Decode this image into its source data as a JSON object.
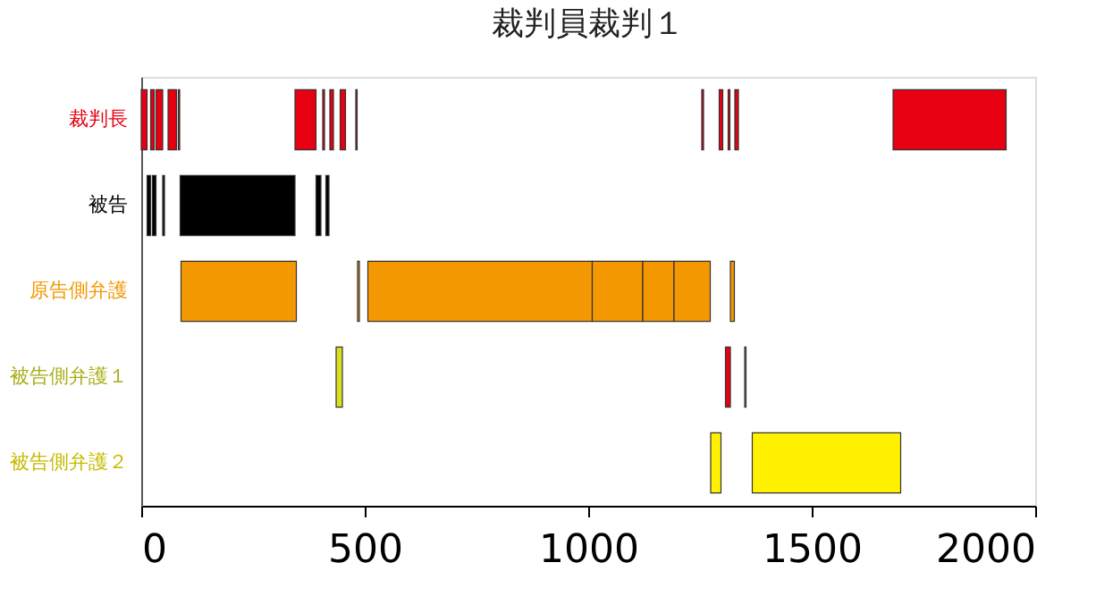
{
  "chart_data": {
    "type": "bar",
    "orientation": "horizontal",
    "title": "裁判員裁判１",
    "categories": [
      "裁判長",
      "被告",
      "原告側弁護",
      "被告側弁護１",
      "被告側弁護２"
    ],
    "series": [
      {
        "colors": [
          "#e60012",
          "#000000",
          "#f39800",
          "#d9e021",
          "#fff100"
        ],
        "base": [
          0,
          13,
          89,
          436,
          1274
        ],
        "values": [
          13,
          8,
          258,
          14,
          23
        ]
      },
      {
        "colors": [
          "#e60012",
          "#000000",
          "#f39800",
          "#e60012",
          "#fff100"
        ],
        "base": [
          21,
          25,
          484,
          1307,
          1367
        ],
        "values": [
          8,
          8,
          4,
          11,
          332
        ]
      },
      {
        "colors": [
          "#e60012",
          "#000000",
          "#f39800",
          "#999999",
          "#fff100"
        ],
        "base": [
          33,
          48,
          507,
          1350,
          null
        ],
        "values": [
          15,
          4,
          502,
          3,
          null
        ]
      },
      {
        "colors": [
          "#e60012",
          "#000000",
          "#f39800",
          "#d9e021",
          "#fff100"
        ],
        "base": [
          60,
          87,
          1009,
          null,
          null
        ],
        "values": [
          19,
          257,
          113,
          null,
          null
        ]
      },
      {
        "colors": [
          "#e60012",
          "#000000",
          "#f39800",
          "#d9e021",
          "#fff100"
        ],
        "base": [
          83,
          391,
          1122,
          null,
          null
        ],
        "values": [
          3,
          11,
          70,
          null,
          null
        ]
      },
      {
        "colors": [
          "#e60012",
          "#000000",
          "#f39800",
          "#d9e021",
          "#fff100"
        ],
        "base": [
          344,
          413,
          1192,
          null,
          null
        ],
        "values": [
          47,
          7,
          81,
          null,
          null
        ]
      },
      {
        "colors": [
          "#e60012",
          "#000000",
          "#f39800",
          "#d9e021",
          "#fff100"
        ],
        "base": [
          406,
          null,
          1318,
          null,
          null
        ],
        "values": [
          4,
          null,
          9,
          null,
          null
        ]
      },
      {
        "colors": [
          "#e60012",
          "#000000",
          "#f39800",
          "#d9e021",
          "#fff100"
        ],
        "base": [
          422,
          null,
          null,
          null,
          null
        ],
        "values": [
          8,
          null,
          null,
          null,
          null
        ]
      },
      {
        "colors": [
          "#e60012",
          "#000000",
          "#f39800",
          "#d9e021",
          "#fff100"
        ],
        "base": [
          445,
          null,
          null,
          null,
          null
        ],
        "values": [
          12,
          null,
          null,
          null,
          null
        ]
      },
      {
        "colors": [
          "#e60012",
          "#000000",
          "#f39800",
          "#d9e021",
          "#fff100"
        ],
        "base": [
          480,
          null,
          null,
          null,
          null
        ],
        "values": [
          3,
          null,
          null,
          null,
          null
        ]
      },
      {
        "colors": [
          "#e60012",
          "#000000",
          "#f39800",
          "#d9e021",
          "#fff100"
        ],
        "base": [
          1254,
          null,
          null,
          null,
          null
        ],
        "values": [
          4,
          null,
          null,
          null,
          null
        ]
      },
      {
        "colors": [
          "#e60012",
          "#000000",
          "#f39800",
          "#d9e021",
          "#fff100"
        ],
        "base": [
          1293,
          null,
          null,
          null,
          null
        ],
        "values": [
          8,
          null,
          null,
          null,
          null
        ]
      },
      {
        "colors": [
          "#e60012",
          "#000000",
          "#f39800",
          "#d9e021",
          "#fff100"
        ],
        "base": [
          1313,
          null,
          null,
          null,
          null
        ],
        "values": [
          4,
          null,
          null,
          null,
          null
        ]
      },
      {
        "colors": [
          "#e60012",
          "#000000",
          "#f39800",
          "#d9e021",
          "#fff100"
        ],
        "base": [
          1328,
          null,
          null,
          null,
          null
        ],
        "values": [
          8,
          null,
          null,
          null,
          null
        ]
      },
      {
        "colors": [
          "#e60012",
          "#000000",
          "#f39800",
          "#d9e021",
          "#fff100"
        ],
        "base": [
          1682,
          null,
          null,
          null,
          null
        ],
        "values": [
          253,
          null,
          null,
          null,
          null
        ]
      }
    ],
    "xlim": [
      0,
      2000
    ],
    "xticks": [
      0,
      500,
      1000,
      1500,
      2000
    ],
    "grid": false
  }
}
